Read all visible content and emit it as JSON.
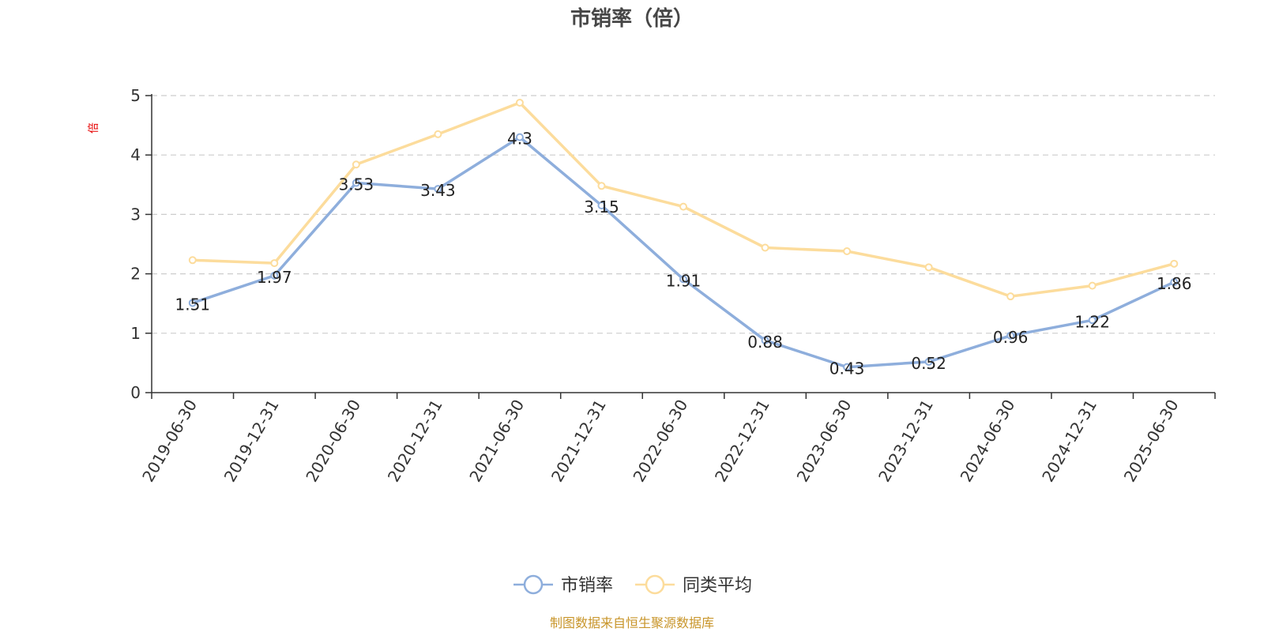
{
  "chart_data": {
    "type": "line",
    "title": "市销率（倍）",
    "ylabel": "倍",
    "xlabel": "",
    "ylim": [
      0,
      5
    ],
    "yticks": [
      "0",
      "1",
      "2",
      "3",
      "4",
      "5"
    ],
    "grid": true,
    "legend_position": "bottom-center",
    "categories": [
      "2019-06-30",
      "2019-12-31",
      "2020-06-30",
      "2020-12-31",
      "2021-06-30",
      "2021-12-31",
      "2022-06-30",
      "2022-12-31",
      "2023-06-30",
      "2023-12-31",
      "2024-06-30",
      "2024-12-31",
      "2025-06-30"
    ],
    "series": [
      {
        "name": "市销率",
        "color": "#8eaedc",
        "values": [
          1.51,
          1.97,
          3.53,
          3.43,
          4.3,
          3.15,
          1.91,
          0.88,
          0.43,
          0.52,
          0.96,
          1.22,
          1.86
        ],
        "labels": [
          "1.51",
          "1.97",
          "3.53",
          "3.43",
          "4.3",
          "3.15",
          "1.91",
          "0.88",
          "0.43",
          "0.52",
          "0.96",
          "1.22",
          "1.86"
        ]
      },
      {
        "name": "同类平均",
        "color": "#fcdc9c",
        "values": [
          2.23,
          2.18,
          3.84,
          4.35,
          4.88,
          3.48,
          3.13,
          2.44,
          2.38,
          2.11,
          1.62,
          1.8,
          2.17
        ]
      }
    ]
  },
  "source": "制图数据来自恒生聚源数据库"
}
